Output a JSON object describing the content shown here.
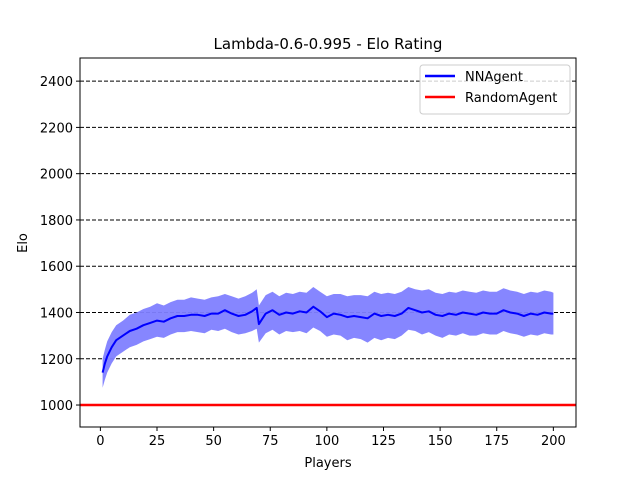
{
  "chart_data": {
    "type": "line",
    "title": "Lambda-0.6-0.995 - Elo Rating",
    "xlabel": "Players",
    "ylabel": "Elo",
    "xlim": [
      -9,
      210
    ],
    "ylim": [
      905,
      2500
    ],
    "xticks": [
      0,
      25,
      50,
      75,
      100,
      125,
      150,
      175,
      200
    ],
    "yticks": [
      1000,
      1200,
      1400,
      1600,
      1800,
      2000,
      2200,
      2400
    ],
    "grid": "horizontal-dashed",
    "legend_position": "top-right",
    "series": [
      {
        "name": "NNAgent",
        "color": "#0000ff",
        "band_color": "#8080ff",
        "x": [
          1,
          2,
          3,
          5,
          7,
          10,
          13,
          16,
          19,
          22,
          25,
          28,
          31,
          34,
          37,
          40,
          43,
          46,
          49,
          52,
          55,
          58,
          61,
          64,
          67,
          69,
          70,
          73,
          76,
          79,
          82,
          85,
          88,
          91,
          94,
          97,
          100,
          103,
          106,
          109,
          112,
          115,
          118,
          121,
          124,
          127,
          130,
          133,
          136,
          139,
          142,
          145,
          148,
          151,
          154,
          157,
          160,
          163,
          166,
          169,
          172,
          175,
          178,
          181,
          184,
          187,
          190,
          193,
          196,
          199,
          200
        ],
        "values": [
          1140,
          1180,
          1210,
          1250,
          1280,
          1300,
          1320,
          1330,
          1345,
          1355,
          1365,
          1360,
          1375,
          1385,
          1385,
          1390,
          1390,
          1385,
          1395,
          1395,
          1410,
          1395,
          1385,
          1390,
          1405,
          1420,
          1350,
          1395,
          1410,
          1390,
          1400,
          1395,
          1405,
          1400,
          1425,
          1405,
          1380,
          1395,
          1390,
          1380,
          1385,
          1380,
          1375,
          1395,
          1385,
          1390,
          1385,
          1395,
          1420,
          1410,
          1400,
          1405,
          1390,
          1385,
          1395,
          1390,
          1400,
          1395,
          1390,
          1400,
          1395,
          1395,
          1410,
          1400,
          1395,
          1385,
          1395,
          1390,
          1400,
          1395,
          1395
        ],
        "lower": [
          1075,
          1110,
          1140,
          1180,
          1210,
          1230,
          1250,
          1260,
          1275,
          1285,
          1295,
          1290,
          1305,
          1315,
          1315,
          1320,
          1315,
          1310,
          1325,
          1320,
          1330,
          1315,
          1305,
          1310,
          1320,
          1330,
          1270,
          1310,
          1325,
          1305,
          1320,
          1315,
          1320,
          1310,
          1335,
          1320,
          1295,
          1305,
          1300,
          1280,
          1290,
          1285,
          1270,
          1290,
          1280,
          1290,
          1285,
          1300,
          1325,
          1320,
          1305,
          1315,
          1300,
          1290,
          1305,
          1300,
          1310,
          1300,
          1300,
          1310,
          1305,
          1305,
          1320,
          1310,
          1305,
          1295,
          1305,
          1300,
          1310,
          1305,
          1305
        ],
        "upper": [
          1200,
          1240,
          1275,
          1315,
          1345,
          1365,
          1390,
          1400,
          1415,
          1425,
          1440,
          1430,
          1445,
          1455,
          1455,
          1465,
          1460,
          1455,
          1465,
          1470,
          1480,
          1470,
          1460,
          1470,
          1485,
          1500,
          1430,
          1475,
          1490,
          1470,
          1485,
          1480,
          1490,
          1485,
          1510,
          1490,
          1470,
          1480,
          1480,
          1470,
          1475,
          1475,
          1470,
          1490,
          1480,
          1485,
          1480,
          1490,
          1510,
          1500,
          1495,
          1500,
          1485,
          1480,
          1490,
          1485,
          1495,
          1490,
          1485,
          1495,
          1490,
          1490,
          1505,
          1495,
          1490,
          1480,
          1490,
          1485,
          1495,
          1490,
          1485
        ]
      },
      {
        "name": "RandomAgent",
        "color": "#ff0000",
        "type": "hline",
        "value": 1000
      }
    ]
  }
}
